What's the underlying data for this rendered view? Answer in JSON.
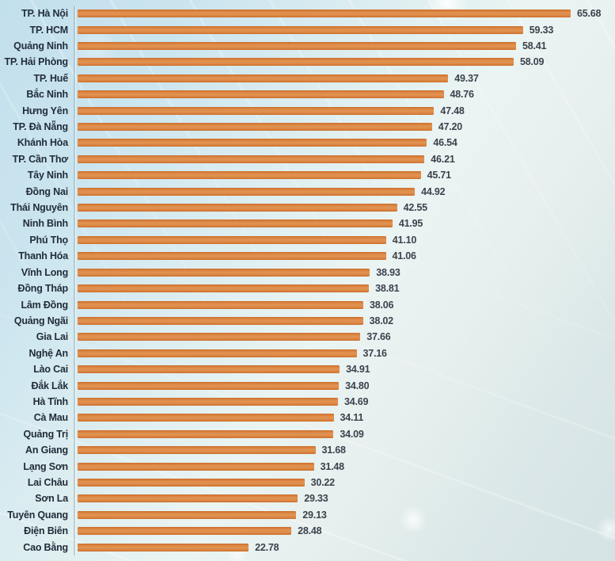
{
  "colors": {
    "bar": "#dd8544",
    "bar_edge": "#c86f2d",
    "category_label": "#222c3a",
    "value_label": "#3c424d",
    "background_top": "#c2dfec",
    "background_bottom": "#d5e3e6"
  },
  "chart_data": {
    "type": "bar",
    "orientation": "horizontal",
    "title": "",
    "xlabel": "",
    "ylabel": "",
    "xlim": [
      0,
      68
    ],
    "grid": false,
    "legend": "none",
    "categories": [
      "TP. Hà Nội",
      "TP. HCM",
      "Quảng Ninh",
      "TP. Hải Phòng",
      "TP. Huế",
      "Bắc Ninh",
      "Hưng Yên",
      "TP. Đà Nẵng",
      "Khánh Hòa",
      "TP. Cần Thơ",
      "Tây Ninh",
      "Đồng Nai",
      "Thái Nguyên",
      "Ninh Bình",
      "Phú Thọ",
      "Thanh Hóa",
      "Vĩnh Long",
      "Đồng Tháp",
      "Lâm Đồng",
      "Quảng Ngãi",
      "Gia Lai",
      "Nghệ An",
      "Lào Cai",
      "Đắk Lắk",
      "Hà Tĩnh",
      "Cà Mau",
      "Quảng Trị",
      "An Giang",
      "Lạng Sơn",
      "Lai Châu",
      "Sơn La",
      "Tuyên Quang",
      "Điện Biên",
      "Cao Bằng"
    ],
    "values": [
      65.68,
      59.33,
      58.41,
      58.09,
      49.37,
      48.76,
      47.48,
      47.2,
      46.54,
      46.21,
      45.71,
      44.92,
      42.55,
      41.95,
      41.1,
      41.06,
      38.93,
      38.81,
      38.06,
      38.02,
      37.66,
      37.16,
      34.91,
      34.8,
      34.69,
      34.11,
      34.09,
      31.68,
      31.48,
      30.22,
      29.33,
      29.13,
      28.48,
      22.78
    ],
    "value_labels": [
      "65.68",
      "59.33",
      "58.41",
      "58.09",
      "49.37",
      "48.76",
      "47.48",
      "47.20",
      "46.54",
      "46.21",
      "45.71",
      "44.92",
      "42.55",
      "41.95",
      "41.10",
      "41.06",
      "38.93",
      "38.81",
      "38.06",
      "38.02",
      "37.66",
      "37.16",
      "34.91",
      "34.80",
      "34.69",
      "34.11",
      "34.09",
      "31.68",
      "31.48",
      "30.22",
      "29.33",
      "29.13",
      "28.48",
      "22.78"
    ]
  }
}
